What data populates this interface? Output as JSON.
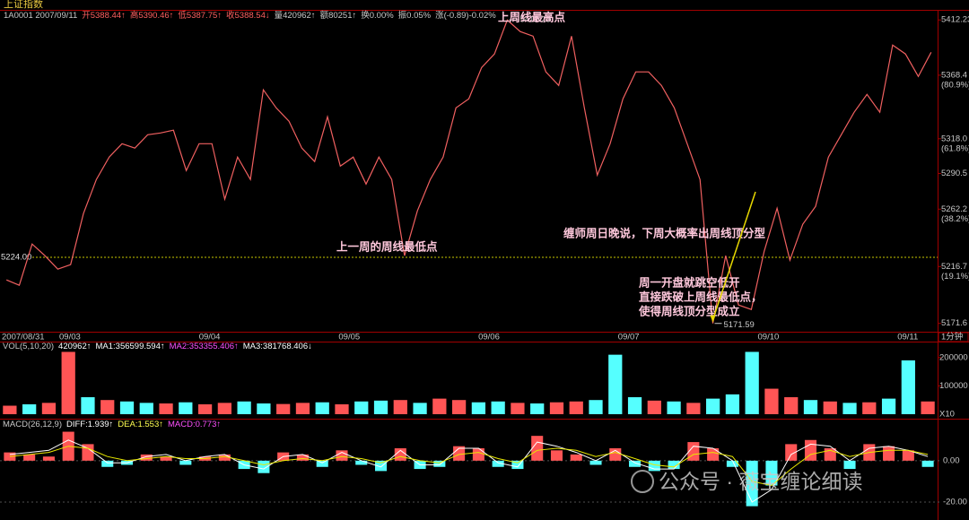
{
  "header": {
    "title": "上证指数",
    "info": [
      {
        "text": "1A0001 2007/09/11",
        "color": "#c8c8c8"
      },
      {
        "text": "开5388.44↑",
        "color": "#ff6060"
      },
      {
        "text": "高5390.46↑",
        "color": "#ff6060"
      },
      {
        "text": "低5387.75↑",
        "color": "#ff6060"
      },
      {
        "text": "收5388.54↓",
        "color": "#ff6060"
      },
      {
        "text": "量420962↑",
        "color": "#c8c8c8"
      },
      {
        "text": "额80251↑",
        "color": "#c8c8c8"
      },
      {
        "text": "换0.00%",
        "color": "#c8c8c8"
      },
      {
        "text": "振0.05%",
        "color": "#c8c8c8"
      },
      {
        "text": "涨(-0.89)-0.02%",
        "color": "#c8c8c8"
      }
    ]
  },
  "chart_data": [
    {
      "type": "line",
      "x_labels": [
        "2007/08/31",
        "09/03",
        "09/04",
        "09/05",
        "09/06",
        "09/07",
        "09/10",
        "09/11"
      ],
      "period": "1分钟",
      "color": "#f06060",
      "values": [
        5206.1,
        5201.8,
        5234.5,
        5225.3,
        5214.6,
        5218.2,
        5258.7,
        5285.7,
        5303.5,
        5314.1,
        5310.6,
        5321.2,
        5322.6,
        5324.8,
        5292.8,
        5314.1,
        5314.1,
        5270.1,
        5303.5,
        5285.7,
        5356.8,
        5342.5,
        5331.9,
        5310.6,
        5299.9,
        5335.4,
        5296.3,
        5303.5,
        5282.1,
        5303.5,
        5285.7,
        5225.3,
        5260.8,
        5285.7,
        5303.5,
        5342.5,
        5349.7,
        5374.5,
        5385.2,
        5412.2,
        5403.0,
        5399.4,
        5371.0,
        5360.3,
        5399.4,
        5342.5,
        5289.2,
        5314.1,
        5349.7,
        5371.0,
        5371.0,
        5360.3,
        5342.5,
        5314.1,
        5285.7,
        5171.6,
        5225.3,
        5186.2,
        5182.6,
        5228.8,
        5262.9,
        5221.7,
        5250.2,
        5264.4,
        5303.5,
        5321.2,
        5339.0,
        5353.2,
        5339.0,
        5392.3,
        5385.2,
        5367.4,
        5386.6
      ],
      "ylim": [
        5165,
        5419.5
      ],
      "yticks": [
        5412.23,
        5368.4,
        {
          "value": 5318,
          "label": "5318.0"
        },
        5290.5,
        5262.2,
        5216.7,
        5171.6
      ],
      "fib_labels": [
        "(80.9%)",
        "(61.8%)",
        "(38.2%)",
        "(19.1%)"
      ],
      "reference_line": {
        "value": 5224,
        "label": "5224.00",
        "color": "#c8c800"
      },
      "high": 5412.23,
      "low": 5171.59,
      "annotations": [
        "上周线最高点",
        "上一周的周线最低点",
        "缠师周日晚说，下周大概率出周线顶分型",
        "周一开盘就跳空低开",
        "直接跌破上周线最低点，",
        "使得周线顶分型成立"
      ],
      "annotation_color": "#ffc8dc",
      "arrow_color": "#e8d800"
    },
    {
      "type": "bar",
      "header_items": [
        {
          "text": "VOL(5,10,20)",
          "color": "#c8c8c8"
        },
        {
          "text": "420962↑",
          "color": "#ffffff"
        },
        {
          "text": "MA1:356599.594↑",
          "color": "#ffffff"
        },
        {
          "text": "MA2:353355.406↑",
          "color": "#ff50ff"
        },
        {
          "text": "MA3:381768.406↓",
          "color": "#ffffff"
        }
      ],
      "values": [
        30000,
        35000,
        40000,
        220000,
        60000,
        50000,
        45000,
        40000,
        38000,
        42000,
        35000,
        40000,
        45000,
        38000,
        36000,
        40000,
        42000,
        35000,
        45000,
        48000,
        50000,
        40000,
        55000,
        50000,
        42000,
        45000,
        40000,
        38000,
        42000,
        45000,
        50000,
        210000,
        60000,
        48000,
        45000,
        40000,
        55000,
        70000,
        220000,
        90000,
        60000,
        50000,
        45000,
        40000,
        42000,
        55000,
        190000,
        45000
      ],
      "colors": [
        "#ff5555",
        "#55ffff",
        "#ff5555",
        "#ff5555",
        "#55ffff",
        "#ff5555",
        "#55ffff",
        "#55ffff",
        "#ff5555",
        "#55ffff",
        "#ff5555",
        "#ff5555",
        "#55ffff",
        "#55ffff",
        "#ff5555",
        "#ff5555",
        "#55ffff",
        "#ff5555",
        "#55ffff",
        "#55ffff",
        "#ff5555",
        "#55ffff",
        "#ff5555",
        "#ff5555",
        "#55ffff",
        "#55ffff",
        "#ff5555",
        "#55ffff",
        "#ff5555",
        "#ff5555",
        "#55ffff",
        "#55ffff",
        "#55ffff",
        "#ff5555",
        "#55ffff",
        "#ff5555",
        "#55ffff",
        "#55ffff",
        "#55ffff",
        "#ff5555",
        "#ff5555",
        "#55ffff",
        "#ff5555",
        "#55ffff",
        "#ff5555",
        "#55ffff",
        "#55ffff",
        "#ff5555"
      ],
      "ylim": [
        0,
        250000
      ],
      "yticks": [
        100000,
        200000
      ],
      "unit_label": "X10"
    },
    {
      "type": "macd",
      "header_items": [
        {
          "text": "MACD(26,12,9)",
          "color": "#c8c8c8"
        },
        {
          "text": "DIFF:1.939↑",
          "color": "#ffffff"
        },
        {
          "text": "DEA:1.553↑",
          "color": "#ffff50"
        },
        {
          "text": "MACD:0.773↑",
          "color": "#ff50ff"
        }
      ],
      "values": [
        4,
        3,
        2,
        14,
        8,
        -3,
        -2,
        3,
        2,
        -2,
        2,
        3,
        -4,
        -6,
        4,
        3,
        -3,
        5,
        -2,
        -5,
        6,
        -4,
        -3,
        7,
        6,
        -3,
        -4,
        12,
        5,
        3,
        -2,
        6,
        -3,
        -5,
        -4,
        9,
        6,
        -3,
        -22,
        -12,
        8,
        10,
        6,
        -4,
        8,
        7,
        5,
        -3
      ],
      "pos_color": "#ff5555",
      "neg_color": "#55ffff",
      "series": [
        {
          "color": "#ffffff",
          "values": [
            3,
            4,
            5,
            10,
            6,
            -1,
            -1,
            2,
            3,
            0,
            2,
            3,
            -2,
            -4,
            2,
            3,
            -1,
            4,
            0,
            -3,
            5,
            -2,
            -2,
            6,
            6,
            -1,
            -3,
            9,
            7,
            4,
            0,
            5,
            -1,
            -4,
            -4,
            7,
            6,
            0,
            -20,
            -14,
            3,
            8,
            7,
            0,
            6,
            7,
            5,
            2
          ]
        },
        {
          "color": "#e8e800",
          "values": [
            2,
            3,
            4,
            7,
            6,
            2,
            0,
            1,
            2,
            1,
            1,
            2,
            0,
            -2,
            0,
            1,
            0,
            2,
            1,
            -1,
            2,
            0,
            -1,
            3,
            4,
            1,
            -1,
            5,
            6,
            5,
            2,
            4,
            1,
            -2,
            -3,
            3,
            4,
            2,
            -10,
            -12,
            -4,
            3,
            5,
            2,
            4,
            5,
            5,
            3
          ]
        }
      ],
      "ylim": [
        -26.5,
        19
      ],
      "yticks": [
        {
          "value": 0,
          "label": "0.00"
        },
        {
          "value": -20,
          "label": "-20.00"
        }
      ]
    }
  ],
  "watermark": "公众号 · 薇宝缠论细读"
}
